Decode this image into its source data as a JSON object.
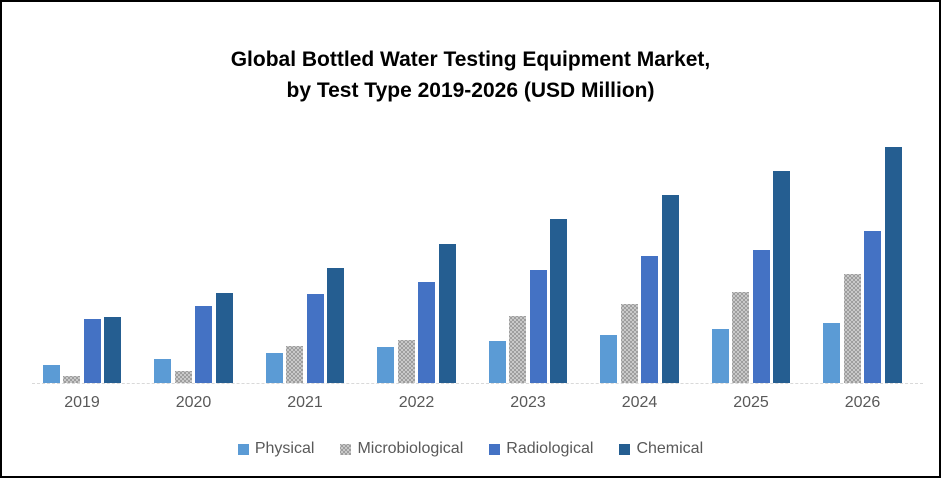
{
  "title": {
    "line1": "Global Bottled Water Testing Equipment Market,",
    "line2": "by Test Type 2019-2026 (USD Million)"
  },
  "chart_data": {
    "type": "bar",
    "title": "Global Bottled Water Testing Equipment Market, by Test Type 2019-2026 (USD Million)",
    "categories": [
      "2019",
      "2020",
      "2021",
      "2022",
      "2023",
      "2024",
      "2025",
      "2026"
    ],
    "series": [
      {
        "name": "Physical",
        "color": "#5B9BD5",
        "pattern": "solid",
        "values": [
          18,
          24,
          30,
          36,
          42,
          48,
          54,
          60
        ]
      },
      {
        "name": "Microbiological",
        "color": "#AFAFAF",
        "pattern": "dotted",
        "values": [
          7,
          12,
          37,
          43,
          67,
          79,
          91,
          109
        ]
      },
      {
        "name": "Radiological",
        "color": "#4472C4",
        "pattern": "solid",
        "values": [
          64,
          77,
          89,
          101,
          113,
          127,
          133,
          152
        ]
      },
      {
        "name": "Chemical",
        "color": "#255E91",
        "pattern": "solid",
        "values": [
          66,
          90,
          115,
          139,
          164,
          188,
          212,
          236
        ]
      }
    ],
    "value_axis": {
      "visible": false,
      "unit": "relative height (no y-axis tick labels shown)",
      "ylim": [
        0,
        250
      ]
    },
    "category_axis": {
      "line_color": "#D9D9D9",
      "label_color": "#595959"
    },
    "legend": {
      "position": "bottom",
      "text_color": "#595959"
    },
    "grid": false,
    "background": "#FFFFFF",
    "frame_border_color": "#000000"
  }
}
